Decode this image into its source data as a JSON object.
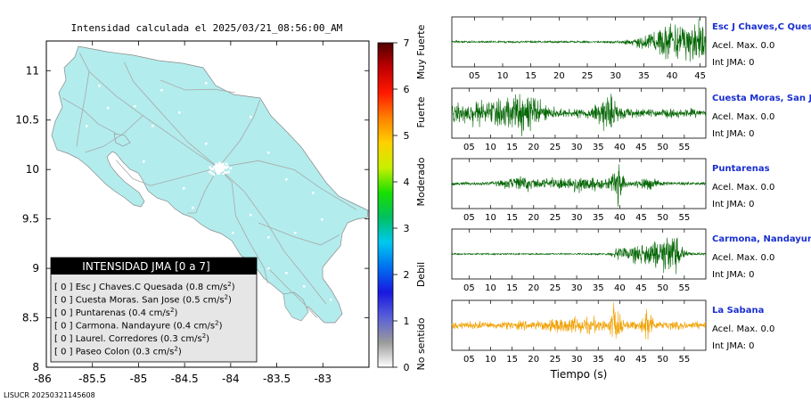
{
  "map": {
    "title": "Intensidad calculada el 2025/03/21_08:56:00_AM",
    "footer_id": "LISUCR 20250321145608",
    "x_ticks": [
      "-85.5",
      "-85",
      "-84.5",
      "-84",
      "-83.5",
      "-83"
    ],
    "y_ticks": [
      "11",
      "10.5",
      "10",
      "9.5",
      "9",
      "8.5",
      "8"
    ],
    "lon_range": [
      -86,
      -82.5
    ],
    "lat_range": [
      8,
      11.3
    ],
    "colors": {
      "land": "#b3eced",
      "roads": "#a8a8a8",
      "stations": "#ffffff",
      "frame": "#000000"
    }
  },
  "colorbar": {
    "ticks": [
      "0",
      "1",
      "2",
      "3",
      "4",
      "5",
      "6",
      "7"
    ],
    "labels": [
      "No sentido",
      "Debil",
      "Moderado",
      "Fuerte",
      "Muy Fuerte"
    ],
    "colors": [
      "#ffffff",
      "#9a9a9a",
      "#5a60d8",
      "#1818e0",
      "#0070f0",
      "#00c8f0",
      "#00c060",
      "#18e000",
      "#c8f000",
      "#ffd000",
      "#ff8000",
      "#ff1800",
      "#c00000",
      "#500000"
    ]
  },
  "legend": {
    "title": "INTENSIDAD JMA [0 a 7]",
    "items": [
      {
        "text": "[ 0 ]  Esc J Chaves.C Quesada (0.8 cm/s",
        "sup": "2",
        "close": ")"
      },
      {
        "text": "[ 0 ]  Cuesta Moras. San Jose (0.5 cm/s",
        "sup": "2",
        "close": ")"
      },
      {
        "text": "[ 0 ]  Puntarenas (0.4 cm/s",
        "sup": "2",
        "close": ")"
      },
      {
        "text": "[ 0 ]  Carmona. Nandayure (0.4 cm/s",
        "sup": "2",
        "close": ")"
      },
      {
        "text": "[ 0 ]  Laurel. Corredores (0.3 cm/s",
        "sup": "2",
        "close": ")"
      },
      {
        "text": "[ 0 ]  Paseo Colon (0.3 cm/s",
        "sup": "2",
        "close": ")"
      }
    ]
  },
  "chart_data": [
    {
      "type": "line",
      "title": "Esc J Chaves,C Quesada",
      "accel_label": "Acel. Max. 0.0",
      "jma_label": "Int JMA: 0",
      "xlim": [
        1,
        46
      ],
      "x_ticks": [
        5,
        10,
        15,
        20,
        25,
        30,
        35,
        40,
        45
      ],
      "color": "#006400",
      "signal": {
        "noise": 0.05,
        "bursts": [
          {
            "center": 41,
            "width": 4,
            "amp": 1.0
          },
          {
            "center": 44,
            "width": 1.5,
            "amp": 0.9
          }
        ]
      }
    },
    {
      "type": "line",
      "title": "Cuesta Moras, San Jose",
      "accel_label": "Acel. Max. 0.0",
      "jma_label": "Int JMA: 0",
      "xlim": [
        1,
        60
      ],
      "x_ticks": [
        5,
        10,
        15,
        20,
        25,
        30,
        35,
        40,
        45,
        50,
        55
      ],
      "color": "#006400",
      "signal": {
        "noise": 0.22,
        "bursts": [
          {
            "center": 8,
            "width": 6,
            "amp": 0.4
          },
          {
            "center": 18,
            "width": 3,
            "amp": 0.7
          },
          {
            "center": 37,
            "width": 2,
            "amp": 0.7
          }
        ]
      }
    },
    {
      "type": "line",
      "title": "Puntarenas",
      "accel_label": "Acel. Max. 0.0",
      "jma_label": "Int JMA: 0",
      "xlim": [
        1,
        60
      ],
      "x_ticks": [
        5,
        10,
        15,
        20,
        25,
        30,
        35,
        40,
        45,
        50,
        55
      ],
      "color": "#006400",
      "signal": {
        "noise": 0.08,
        "bursts": [
          {
            "center": 17,
            "width": 3,
            "amp": 0.3
          },
          {
            "center": 30,
            "width": 5,
            "amp": 0.35
          },
          {
            "center": 39.5,
            "width": 0.9,
            "amp": 1.0
          },
          {
            "center": 46,
            "width": 2,
            "amp": 0.25
          }
        ]
      }
    },
    {
      "type": "line",
      "title": "Carmona, Nandayure",
      "accel_label": "Acel. Max. 0.0",
      "jma_label": "Int JMA: 0",
      "xlim": [
        1,
        60
      ],
      "x_ticks": [
        5,
        10,
        15,
        20,
        25,
        30,
        35,
        40,
        45,
        50,
        55
      ],
      "color": "#006400",
      "signal": {
        "noise": 0.04,
        "bursts": [
          {
            "center": 40,
            "width": 1,
            "amp": 0.25
          },
          {
            "center": 48,
            "width": 4,
            "amp": 0.7
          },
          {
            "center": 52,
            "width": 1.2,
            "amp": 1.0
          }
        ]
      }
    },
    {
      "type": "line",
      "title": "La Sabana",
      "accel_label": "Acel. Max. 0.0",
      "jma_label": "Int JMA: 0",
      "xlim": [
        1,
        60
      ],
      "x_ticks": [
        5,
        10,
        15,
        20,
        25,
        30,
        35,
        40,
        45,
        50,
        55
      ],
      "xlabel": "Tiempo (s)",
      "color": "#f0a000",
      "signal": {
        "noise": 0.2,
        "bursts": [
          {
            "center": 39,
            "width": 0.8,
            "amp": 1.0
          },
          {
            "center": 46.5,
            "width": 0.8,
            "amp": 0.85
          },
          {
            "center": 30,
            "width": 5,
            "amp": 0.25
          }
        ]
      }
    }
  ]
}
